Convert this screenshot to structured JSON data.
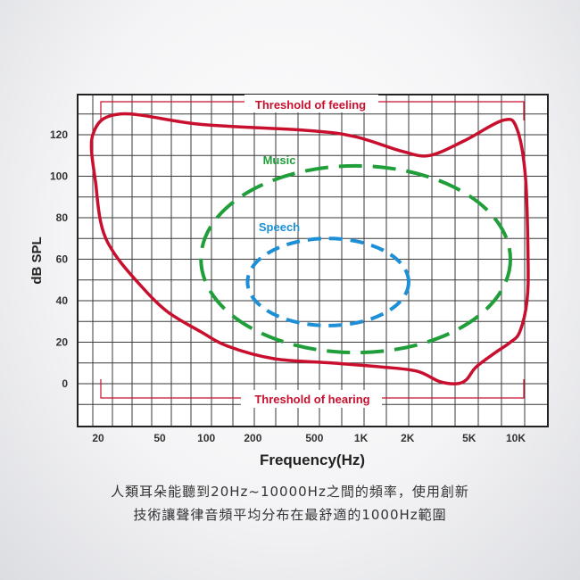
{
  "chart_data": {
    "type": "area",
    "xlabel": "Frequency(Hz)",
    "ylabel": "dB SPL",
    "x_scale": "log",
    "xlim": [
      20,
      10000
    ],
    "ylim": [
      -20,
      140
    ],
    "x_tick_labels": [
      "20",
      "50",
      "100",
      "200",
      "500",
      "1K",
      "2K",
      "5K",
      "10K"
    ],
    "x_tick_values": [
      20,
      50,
      100,
      200,
      500,
      1000,
      2000,
      5000,
      10000
    ],
    "y_tick_labels": [
      "120",
      "100",
      "80",
      "60",
      "40",
      "20",
      "0"
    ],
    "y_tick_values": [
      120,
      100,
      80,
      60,
      40,
      20,
      0
    ],
    "grid": true,
    "series": [
      {
        "name": "Threshold of feeling",
        "color": "#c8102e",
        "style": "solid",
        "points": [
          [
            20,
            120
          ],
          [
            30,
            130
          ],
          [
            100,
            125
          ],
          [
            500,
            122
          ],
          [
            1000,
            119
          ],
          [
            2000,
            112
          ],
          [
            3000,
            110
          ],
          [
            5000,
            117
          ],
          [
            9000,
            127
          ],
          [
            11000,
            123
          ],
          [
            12500,
            100
          ],
          [
            13000,
            60
          ],
          [
            12800,
            40
          ],
          [
            11500,
            25
          ],
          [
            10000,
            20
          ],
          [
            8000,
            15
          ],
          [
            6000,
            8
          ],
          [
            5200,
            2
          ],
          [
            4500,
            0
          ],
          [
            3500,
            1
          ],
          [
            2500,
            6
          ],
          [
            1500,
            8
          ],
          [
            700,
            10
          ],
          [
            300,
            12
          ],
          [
            150,
            18
          ],
          [
            100,
            25
          ],
          [
            60,
            35
          ],
          [
            40,
            48
          ],
          [
            28,
            62
          ],
          [
            23,
            75
          ],
          [
            21,
            95
          ],
          [
            20,
            120
          ]
        ]
      },
      {
        "name": "Music",
        "color": "#1f9e3a",
        "style": "dashed",
        "ellipse": {
          "center": [
            500,
            60
          ],
          "x_range": [
            100,
            10000
          ],
          "y_range": [
            15,
            105
          ]
        }
      },
      {
        "name": "Speech",
        "color": "#1c8fd6",
        "style": "dashed",
        "ellipse": {
          "center": [
            500,
            50
          ],
          "x_range": [
            200,
            2200
          ],
          "y_range": [
            28,
            70
          ]
        }
      }
    ],
    "annotations": [
      {
        "text": "Threshold of feeling",
        "color": "#c8102e"
      },
      {
        "text": "Music",
        "color": "#1f9e3a"
      },
      {
        "text": "Speech",
        "color": "#1c8fd6"
      },
      {
        "text": "Threshold of hearing",
        "color": "#c8102e"
      }
    ]
  },
  "caption": {
    "line1": "人類耳朵能聽到20Hz~10000Hz之間的頻率，使用創新",
    "line2": "技術讓聲律音頻平均分布在最舒適的1000Hz範圍"
  }
}
